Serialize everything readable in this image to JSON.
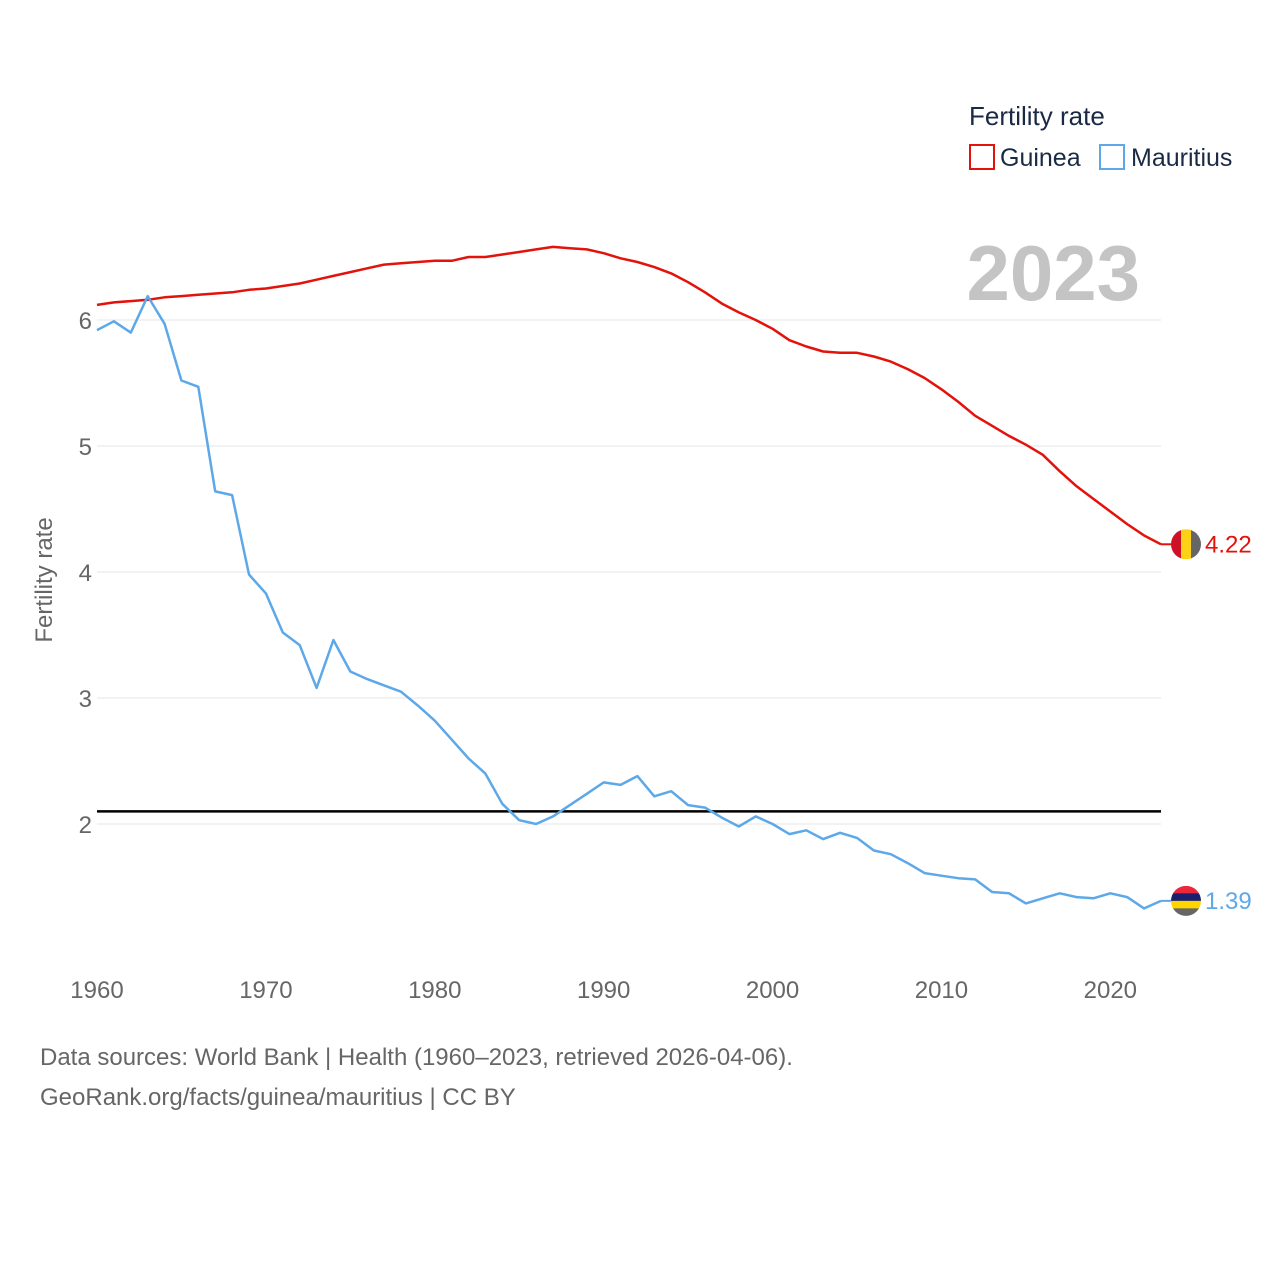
{
  "chart_data": {
    "type": "line",
    "xlabel": "",
    "ylabel": "Fertility rate",
    "xlim": [
      1960,
      2023
    ],
    "ylim": [
      1.0,
      7.0
    ],
    "x_ticks": [
      "1960",
      "1970",
      "1980",
      "1990",
      "2000",
      "2010",
      "2020"
    ],
    "y_ticks": [
      "2",
      "3",
      "4",
      "5",
      "6"
    ],
    "year_display": "2023",
    "legend": {
      "title": "Fertility rate",
      "position": "top-right"
    },
    "reference_line": {
      "y": 2.1,
      "color": "#000000"
    },
    "x": [
      1960,
      1961,
      1962,
      1963,
      1964,
      1965,
      1966,
      1967,
      1968,
      1969,
      1970,
      1971,
      1972,
      1973,
      1974,
      1975,
      1976,
      1977,
      1978,
      1979,
      1980,
      1981,
      1982,
      1983,
      1984,
      1985,
      1986,
      1987,
      1988,
      1989,
      1990,
      1991,
      1992,
      1993,
      1994,
      1995,
      1996,
      1997,
      1998,
      1999,
      2000,
      2001,
      2002,
      2003,
      2004,
      2005,
      2006,
      2007,
      2008,
      2009,
      2010,
      2011,
      2012,
      2013,
      2014,
      2015,
      2016,
      2017,
      2018,
      2019,
      2020,
      2021,
      2022,
      2023
    ],
    "series": [
      {
        "name": "Guinea",
        "color": "#e3120b",
        "end_label": "4.22",
        "flag_colors": [
          "#ce1126",
          "#fcd116",
          "#666666"
        ],
        "values": [
          6.12,
          6.14,
          6.15,
          6.16,
          6.18,
          6.19,
          6.2,
          6.21,
          6.22,
          6.24,
          6.25,
          6.27,
          6.29,
          6.32,
          6.35,
          6.38,
          6.41,
          6.44,
          6.45,
          6.46,
          6.47,
          6.47,
          6.5,
          6.5,
          6.52,
          6.54,
          6.56,
          6.58,
          6.57,
          6.56,
          6.53,
          6.49,
          6.46,
          6.42,
          6.37,
          6.3,
          6.22,
          6.13,
          6.06,
          6.0,
          5.93,
          5.84,
          5.79,
          5.75,
          5.74,
          5.74,
          5.71,
          5.67,
          5.61,
          5.54,
          5.45,
          5.35,
          5.24,
          5.16,
          5.08,
          5.01,
          4.93,
          4.8,
          4.68,
          4.58,
          4.48,
          4.38,
          4.29,
          4.22
        ]
      },
      {
        "name": "Mauritius",
        "color": "#5da8e8",
        "end_label": "1.39",
        "flag_colors": [
          "#ea2839",
          "#1a206d",
          "#ffd500",
          "#666666"
        ],
        "values": [
          5.92,
          5.99,
          5.9,
          6.19,
          5.97,
          5.52,
          5.47,
          4.64,
          4.61,
          3.98,
          3.83,
          3.52,
          3.42,
          3.08,
          3.46,
          3.21,
          3.15,
          3.1,
          3.05,
          2.94,
          2.82,
          2.67,
          2.52,
          2.4,
          2.16,
          2.03,
          2.0,
          2.06,
          2.15,
          2.24,
          2.33,
          2.31,
          2.38,
          2.22,
          2.26,
          2.15,
          2.13,
          2.05,
          1.98,
          2.06,
          2.0,
          1.92,
          1.95,
          1.88,
          1.93,
          1.89,
          1.79,
          1.76,
          1.69,
          1.61,
          1.59,
          1.57,
          1.56,
          1.46,
          1.45,
          1.37,
          1.41,
          1.45,
          1.42,
          1.41,
          1.45,
          1.42,
          1.33,
          1.39
        ]
      }
    ]
  },
  "footer": {
    "line1": "Data sources: World Bank | Health (1960–2023, retrieved 2026-04-06).",
    "line2": "GeoRank.org/facts/guinea/mauritius | CC BY"
  }
}
